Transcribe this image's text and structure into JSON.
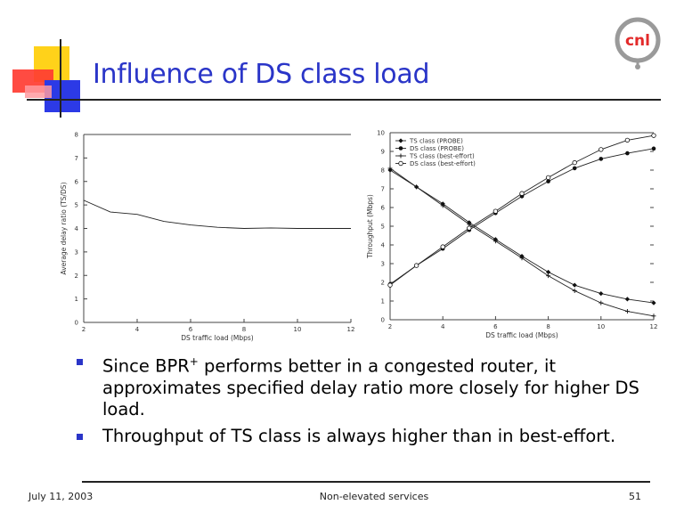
{
  "slide": {
    "title": "Influence of DS class load",
    "logo_text": "cnl",
    "accent_color": "#2a35c8"
  },
  "bullets": [
    {
      "prefix": "Since BPR",
      "sup": "+",
      "text": " performs better in a congested router, it approximates specified delay ratio more closely for higher DS load."
    },
    {
      "prefix": "Throughput of TS class is always higher than in best-effort.",
      "sup": "",
      "text": ""
    }
  ],
  "footer": {
    "date": "July 11, 2003",
    "title": "Non-elevated services",
    "page": "51"
  },
  "chart_data": [
    {
      "type": "line",
      "title": "",
      "xlabel": "DS traffic load (Mbps)",
      "ylabel": "Average delay ratio (TS/DS)",
      "xlim": [
        2,
        12
      ],
      "ylim": [
        0,
        8
      ],
      "x_ticks": [
        2,
        4,
        6,
        8,
        10,
        12
      ],
      "y_ticks": [
        0,
        1,
        2,
        3,
        4,
        5,
        6,
        7,
        8
      ],
      "series": [
        {
          "x": [
            2,
            3,
            4,
            5,
            6,
            7,
            8,
            9,
            10,
            11,
            12
          ],
          "values": [
            5.2,
            4.7,
            4.6,
            4.3,
            4.15,
            4.05,
            4.0,
            4.02,
            4.0,
            4.0,
            4.0
          ]
        }
      ]
    },
    {
      "type": "line",
      "title": "",
      "xlabel": "DS traffic load (Mbps)",
      "ylabel": "Throughput (Mbps)",
      "xlim": [
        2,
        12
      ],
      "ylim": [
        0,
        10
      ],
      "x_ticks": [
        2,
        4,
        6,
        8,
        10,
        12
      ],
      "y_ticks": [
        0,
        1,
        2,
        3,
        4,
        5,
        6,
        7,
        8,
        9,
        10
      ],
      "legend_position": "top-left",
      "series": [
        {
          "name": "TS class (PROBE)",
          "marker": "filled-diamond",
          "x": [
            2,
            3,
            4,
            5,
            6,
            7,
            8,
            9,
            10,
            11,
            12
          ],
          "values": [
            8.0,
            7.1,
            6.2,
            5.2,
            4.3,
            3.4,
            2.55,
            1.85,
            1.4,
            1.1,
            0.9
          ]
        },
        {
          "name": "DS class (PROBE)",
          "marker": "filled-circle",
          "x": [
            2,
            3,
            4,
            5,
            6,
            7,
            8,
            9,
            10,
            11,
            12
          ],
          "values": [
            1.9,
            2.9,
            3.8,
            4.8,
            5.7,
            6.6,
            7.4,
            8.1,
            8.6,
            8.9,
            9.15
          ]
        },
        {
          "name": "TS class (best-effort)",
          "marker": "plus",
          "x": [
            2,
            3,
            4,
            5,
            6,
            7,
            8,
            9,
            10,
            11,
            12
          ],
          "values": [
            8.1,
            7.1,
            6.1,
            5.1,
            4.2,
            3.3,
            2.35,
            1.55,
            0.9,
            0.45,
            0.2
          ]
        },
        {
          "name": "DS class (best-effort)",
          "marker": "open-circle",
          "x": [
            2,
            3,
            4,
            5,
            6,
            7,
            8,
            9,
            10,
            11,
            12
          ],
          "values": [
            1.85,
            2.9,
            3.9,
            4.9,
            5.8,
            6.75,
            7.6,
            8.4,
            9.1,
            9.6,
            9.85
          ]
        }
      ]
    }
  ]
}
